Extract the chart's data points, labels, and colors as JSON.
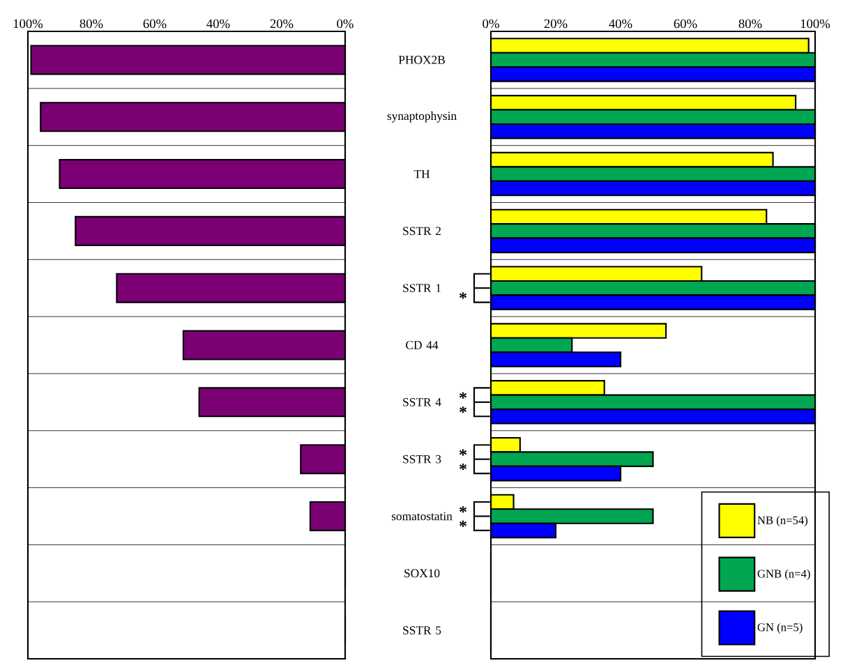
{
  "chart_data": [
    {
      "type": "bar",
      "orientation": "horizontal",
      "grid": "y",
      "categories": [
        "PHOX2B",
        "synaptophysin",
        "TH",
        "SSTR 2",
        "SSTR 1",
        "CD 44",
        "SSTR 4",
        "SSTR 3",
        "somatostatin",
        "SOX10",
        "SSTR 5"
      ],
      "series": [
        {
          "color": "#7b0074",
          "values": [
            99,
            96,
            90,
            85,
            72,
            51,
            46,
            14,
            11,
            0,
            0
          ]
        }
      ],
      "xlim": [
        100,
        0
      ],
      "xticks": [
        {
          "value": 100,
          "label": "100%"
        },
        {
          "value": 80,
          "label": "80%"
        },
        {
          "value": 60,
          "label": "60%"
        },
        {
          "value": 40,
          "label": "40%"
        },
        {
          "value": 20,
          "label": "20%"
        },
        {
          "value": 0,
          "label": "0%"
        }
      ]
    },
    {
      "type": "bar",
      "orientation": "horizontal",
      "grid": "y",
      "legend": "bottom right",
      "tick_labels": "x",
      "categories": [
        null,
        null,
        null,
        null,
        null,
        null,
        null,
        null,
        null,
        null,
        null
      ],
      "series": [
        {
          "name": "NB (n=54)",
          "color": "#ffff00",
          "values": [
            98,
            94,
            87,
            85,
            65,
            54,
            35,
            9,
            7,
            0,
            0
          ]
        },
        {
          "name": "GNB (n=4)",
          "color": "#00a651",
          "values": [
            100,
            100,
            100,
            100,
            100,
            25,
            100,
            50,
            50,
            0,
            0
          ]
        },
        {
          "name": "GN (n=5)",
          "color": "#0000ff",
          "values": [
            100,
            100,
            100,
            100,
            100,
            40,
            100,
            40,
            20,
            0,
            0
          ]
        }
      ],
      "xlim": [
        0,
        100
      ],
      "xticks": [
        {
          "value": 0,
          "label": "0%"
        },
        {
          "value": 20,
          "label": "20%"
        },
        {
          "value": 40,
          "label": "40%"
        },
        {
          "value": 60,
          "label": "60%"
        },
        {
          "value": 80,
          "label": "80%"
        },
        {
          "value": 100,
          "label": "100%"
        }
      ],
      "annotations": [
        "*",
        "*",
        "*",
        "*",
        "*",
        "*",
        "*"
      ]
    }
  ]
}
